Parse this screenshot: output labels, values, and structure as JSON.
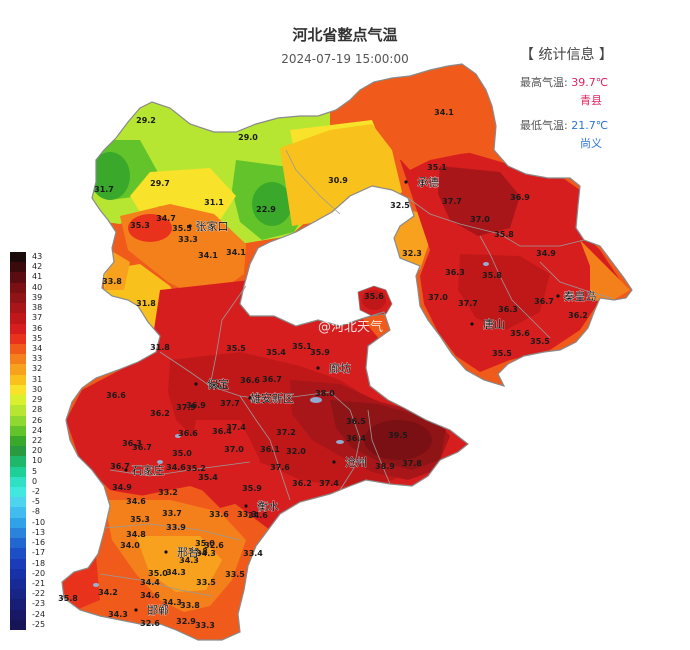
{
  "title": "河北省整点气温",
  "datetime": "2024-07-19 15:00:00",
  "stats": {
    "header": "【 统计信息 】",
    "max_label": "最高气温:",
    "max_value": "39.7℃",
    "max_place": "青县",
    "min_label": "最低气温:",
    "min_value": "21.7℃",
    "min_place": "尚义",
    "max_color": "#e0245e",
    "min_color": "#2a73d9"
  },
  "legend": {
    "labels": [
      "43",
      "42",
      "41",
      "40",
      "39",
      "38",
      "37",
      "36",
      "35",
      "34",
      "33",
      "32",
      "31",
      "30",
      "29",
      "28",
      "26",
      "24",
      "22",
      "20",
      "10",
      "5",
      "0",
      "-2",
      "-5",
      "-8",
      "-10",
      "-13",
      "-16",
      "-17",
      "-18",
      "-20",
      "-21",
      "-22",
      "-23",
      "-24",
      "-25"
    ],
    "colors": [
      "#1a0a0a",
      "#3b0a0a",
      "#5a0c10",
      "#7a1014",
      "#8f1416",
      "#a8161a",
      "#c01818",
      "#d71e1e",
      "#e8321c",
      "#f05a1a",
      "#f4801c",
      "#f7a11e",
      "#f9c11c",
      "#f8e22a",
      "#d9f02e",
      "#b6e632",
      "#8fd830",
      "#62c42a",
      "#3aa82a",
      "#2a9a40",
      "#1fb86a",
      "#1fcf98",
      "#2fe0c4",
      "#40e8e0",
      "#4fd4f0",
      "#40bcee",
      "#30a2e8",
      "#2a84dc",
      "#2266d2",
      "#1c4ec6",
      "#1a3cb8",
      "#1830a8",
      "#182a96",
      "#182486",
      "#181e76",
      "#181866",
      "#181458"
    ]
  },
  "watermark": "@河北天气",
  "cities": [
    {
      "name": "张家口",
      "icon": "city-marker-icon"
    },
    {
      "name": "承德",
      "icon": "city-marker-icon"
    },
    {
      "name": "秦皇岛",
      "icon": "city-marker-icon"
    },
    {
      "name": "唐山",
      "icon": "city-marker-icon"
    },
    {
      "name": "保定",
      "icon": "city-marker-icon"
    },
    {
      "name": "廊坊",
      "icon": "city-marker-icon"
    },
    {
      "name": "雄安新区",
      "icon": "city-marker-icon"
    },
    {
      "name": "沧州",
      "icon": "city-marker-icon"
    },
    {
      "name": "石家庄",
      "icon": "city-marker-icon"
    },
    {
      "name": "衡水",
      "icon": "city-marker-icon"
    },
    {
      "name": "邢台",
      "icon": "city-marker-icon"
    },
    {
      "name": "邯郸",
      "icon": "city-marker-icon"
    }
  ],
  "readings": [
    "29.2",
    "29.0",
    "31.7",
    "29.7",
    "31.1",
    "22.9",
    "30.9",
    "34.1",
    "35.1",
    "32.5",
    "37.7",
    "37.0",
    "36.9",
    "35.8",
    "32.3",
    "34.9",
    "36.3",
    "35.8",
    "37.0",
    "37.7",
    "36.7",
    "36.3",
    "36.2",
    "35.6",
    "35.5",
    "35.5",
    "35.6",
    "35.3",
    "34.7",
    "35.5",
    "33.3",
    "34.1",
    "34.1",
    "33.8",
    "31.8",
    "31.8",
    "35.5",
    "35.4",
    "35.1",
    "35.9",
    "36.6",
    "36.6",
    "36.5",
    "36.7",
    "36.2",
    "37.9",
    "36.9",
    "37.7",
    "38.0",
    "36.5",
    "36.4",
    "39.5",
    "37.8",
    "38.9",
    "37.2",
    "37.4",
    "37.0",
    "36.1",
    "36.7",
    "36.3",
    "36.4",
    "36.6",
    "36.7",
    "35.0",
    "34.6",
    "35.2",
    "35.4",
    "37.6",
    "34.9",
    "32.0",
    "33.2",
    "33.7",
    "33.9",
    "34.8",
    "34.6",
    "35.3",
    "34.0",
    "34.3",
    "33.8",
    "34.3",
    "33.5",
    "35.0",
    "34.4",
    "34.6",
    "34.3",
    "33.4",
    "33.5",
    "35.8",
    "34.2",
    "34.3",
    "33.8",
    "32.6",
    "32.9",
    "33.3",
    "35.9",
    "36.2",
    "34.6",
    "37.4",
    "35.0",
    "33.6",
    "32.6",
    "33.3",
    "34.3"
  ]
}
